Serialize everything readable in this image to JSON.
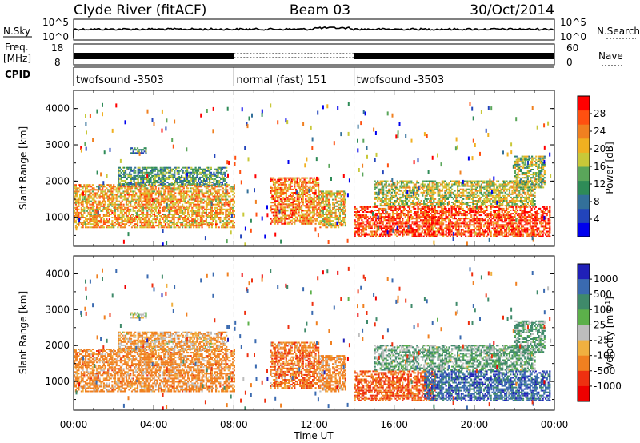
{
  "header": {
    "station": "Clyde River (fitACF)",
    "beam": "Beam 03",
    "date": "30/Oct/2014"
  },
  "noise_panel": {
    "left_label": "N.Sky",
    "right_label": "N.Search",
    "top_tick": "10^5",
    "bottom_tick": "10^0"
  },
  "freq_panel": {
    "left_label_1": "Freq.",
    "left_label_2": "[MHz]",
    "left_top_tick": "18",
    "left_bottom_tick": "8",
    "right_label": "Nave",
    "right_top_tick": "60",
    "right_bottom_tick": "0"
  },
  "cpid_panel": {
    "label": "CPID",
    "segments": [
      {
        "start_hour": 0,
        "end_hour": 8,
        "text": "twofsound -3503"
      },
      {
        "start_hour": 8,
        "end_hour": 14,
        "text": "normal (fast) 151"
      },
      {
        "start_hour": 14,
        "end_hour": 24,
        "text": "twofsound -3503"
      }
    ]
  },
  "power_panel": {
    "ylabel": "Slant Range [km]",
    "yticks": [
      "1000",
      "2000",
      "3000",
      "4000"
    ],
    "colorbar_label": "Power [dB]",
    "colorbar_ticks": [
      "4",
      "8",
      "12",
      "16",
      "20",
      "24",
      "28"
    ],
    "colors": [
      "#0000ee",
      "#2244bb",
      "#33709a",
      "#2e8b57",
      "#5aa65a",
      "#c8c838",
      "#f0b020",
      "#f08020",
      "#ff5010",
      "#ff0000"
    ]
  },
  "velocity_panel": {
    "ylabel": "Slant Range [km]",
    "yticks": [
      "1000",
      "2000",
      "3000",
      "4000"
    ],
    "colorbar_label": "Velocity [m s",
    "colorbar_label_sup": "-1",
    "colorbar_label_end": "]",
    "colorbar_ticks": [
      "1000",
      "500",
      "100",
      "25",
      "-25",
      "-100",
      "-500",
      "-1000"
    ],
    "colors": [
      "#2020b8",
      "#3a6ab0",
      "#3f8a6a",
      "#5cb04a",
      "#bdbdbd",
      "#f0b040",
      "#f08020",
      "#ee3010",
      "#ee0000"
    ]
  },
  "x_axis": {
    "label": "Time UT",
    "ticks": [
      "00:00",
      "04:00",
      "08:00",
      "12:00",
      "16:00",
      "20:00",
      "00:00"
    ]
  },
  "chart_data": {
    "type": "heatmap",
    "title": "Clyde River (fitACF)",
    "subtitle": "Beam 03",
    "xlabel": "Time UT",
    "ylabel": "Slant Range [km]",
    "xlim": [
      0,
      24
    ],
    "ylim": [
      200,
      4500
    ],
    "power_colorbar_range_db": [
      0,
      32
    ],
    "velocity_colorbar_range_ms": [
      -1000,
      1000
    ],
    "mode_change_hours": [
      8,
      14
    ],
    "echo_regions": [
      {
        "t_start": 0.0,
        "t_end": 8.0,
        "range_min": 700,
        "range_max": 1900,
        "power_db": 22,
        "velocity_ms": -150
      },
      {
        "t_start": 2.2,
        "t_end": 7.6,
        "range_min": 1850,
        "range_max": 2350,
        "power_db": 12,
        "velocity_ms": -60
      },
      {
        "t_start": 2.8,
        "t_end": 3.6,
        "range_min": 2750,
        "range_max": 2900,
        "power_db": 10,
        "velocity_ms": 10
      },
      {
        "t_start": 9.8,
        "t_end": 12.2,
        "range_min": 800,
        "range_max": 2100,
        "power_db": 24,
        "velocity_ms": -200
      },
      {
        "t_start": 12.2,
        "t_end": 13.6,
        "range_min": 700,
        "range_max": 1700,
        "power_db": 20,
        "velocity_ms": -150
      },
      {
        "t_start": 14.0,
        "t_end": 18.0,
        "range_min": 450,
        "range_max": 1300,
        "power_db": 28,
        "velocity_ms": -300
      },
      {
        "t_start": 17.5,
        "t_end": 23.8,
        "range_min": 450,
        "range_max": 1300,
        "power_db": 28,
        "velocity_ms": 500
      },
      {
        "t_start": 15.0,
        "t_end": 23.0,
        "range_min": 1300,
        "range_max": 2000,
        "power_db": 18,
        "velocity_ms": 60
      },
      {
        "t_start": 22.0,
        "t_end": 23.5,
        "range_min": 1800,
        "range_max": 2700,
        "power_db": 16,
        "velocity_ms": 80
      }
    ]
  }
}
